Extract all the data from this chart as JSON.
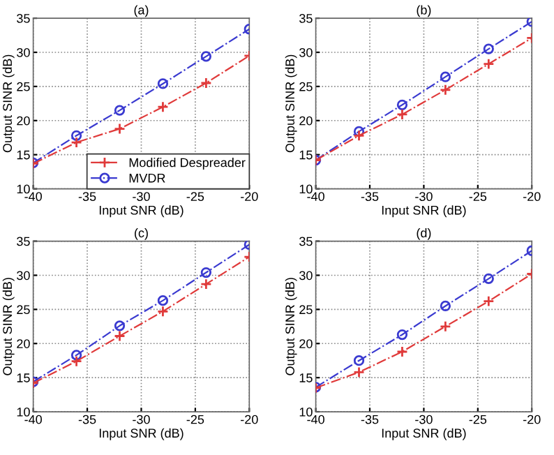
{
  "chart_data": [
    {
      "type": "line",
      "title": "(a)",
      "xlabel": "Input SNR (dB)",
      "ylabel": "Output SINR (dB)",
      "x": [
        -40,
        -36,
        -32,
        -28,
        -24,
        -20
      ],
      "xlim": [
        -40,
        -20
      ],
      "ylim": [
        10,
        35
      ],
      "xticks": [
        -40,
        -35,
        -30,
        -25,
        -20
      ],
      "yticks": [
        10,
        15,
        20,
        25,
        30,
        35
      ],
      "grid": true,
      "legend": "bottom right",
      "line_style": "dashed",
      "series": [
        {
          "name": "Modified Despreader",
          "color": "#e03a3a",
          "marker": "cross",
          "values": [
            13.7,
            16.8,
            18.8,
            22,
            25.5,
            29.5
          ]
        },
        {
          "name": "MVDR",
          "color": "#3a3ad0",
          "marker": "circle",
          "values": [
            13.8,
            17.8,
            21.5,
            25.4,
            29.4,
            33.4
          ]
        }
      ]
    },
    {
      "type": "line",
      "title": "(b)",
      "xlabel": "Input SNR (dB)",
      "ylabel": "Output SINR (dB)",
      "x": [
        -40,
        -36,
        -32,
        -28,
        -24,
        -20
      ],
      "xlim": [
        -40,
        -20
      ],
      "ylim": [
        10,
        35
      ],
      "xticks": [
        -40,
        -35,
        -30,
        -25,
        -20
      ],
      "yticks": [
        10,
        15,
        20,
        25,
        30,
        35
      ],
      "grid": true,
      "line_style": "dashed",
      "series": [
        {
          "color": "#e03a3a",
          "marker": "cross",
          "values": [
            14.2,
            17.8,
            20.9,
            24.5,
            28.3,
            32.1
          ]
        },
        {
          "color": "#3a3ad0",
          "marker": "circle",
          "values": [
            14.2,
            18.4,
            22.3,
            26.4,
            30.5,
            34.5
          ]
        }
      ]
    },
    {
      "type": "line",
      "title": "(c)",
      "xlabel": "Input SNR (dB)",
      "ylabel": "Output SINR (dB)",
      "x": [
        -40,
        -36,
        -32,
        -28,
        -24,
        -20
      ],
      "xlim": [
        -40,
        -20
      ],
      "ylim": [
        10,
        35
      ],
      "xticks": [
        -40,
        -35,
        -30,
        -25,
        -20
      ],
      "yticks": [
        10,
        15,
        20,
        25,
        30,
        35
      ],
      "grid": true,
      "line_style": "dashed",
      "series": [
        {
          "color": "#e03a3a",
          "marker": "cross",
          "values": [
            14.2,
            17.4,
            21.1,
            24.7,
            28.7,
            32.7
          ]
        },
        {
          "color": "#3a3ad0",
          "marker": "circle",
          "values": [
            14.4,
            18.3,
            22.6,
            26.3,
            30.4,
            34.5
          ]
        }
      ]
    },
    {
      "type": "line",
      "title": "(d)",
      "xlabel": "Input SNR (dB)",
      "ylabel": "Output SINR (dB)",
      "x": [
        -40,
        -36,
        -32,
        -28,
        -24,
        -20
      ],
      "xlim": [
        -40,
        -20
      ],
      "ylim": [
        10,
        35
      ],
      "xticks": [
        -40,
        -35,
        -30,
        -25,
        -20
      ],
      "yticks": [
        10,
        15,
        20,
        25,
        30,
        35
      ],
      "grid": true,
      "line_style": "dashed",
      "series": [
        {
          "color": "#e03a3a",
          "marker": "cross",
          "values": [
            13.5,
            15.8,
            18.8,
            22.5,
            26.2,
            30.2
          ]
        },
        {
          "color": "#3a3ad0",
          "marker": "circle",
          "values": [
            13.6,
            17.5,
            21.3,
            25.5,
            29.5,
            33.6
          ]
        }
      ]
    }
  ]
}
